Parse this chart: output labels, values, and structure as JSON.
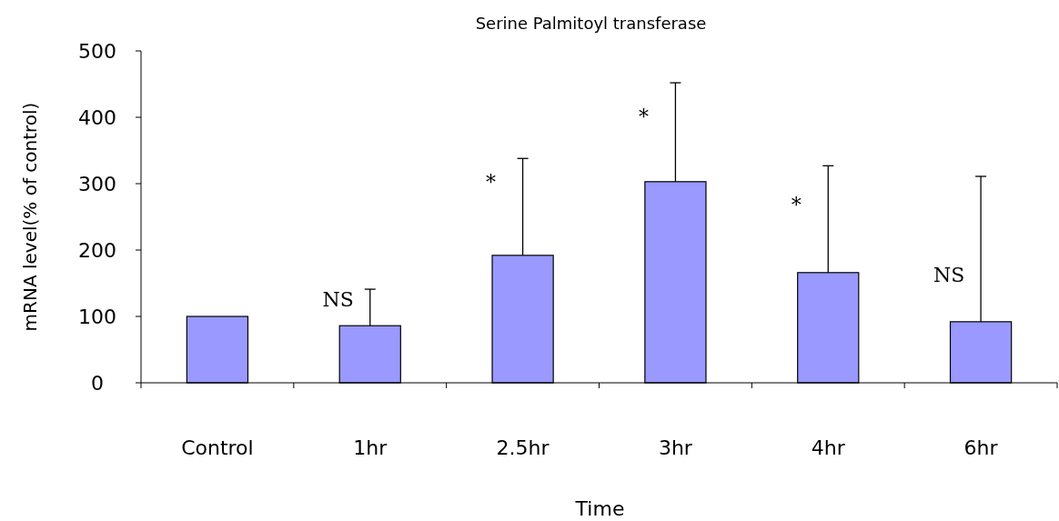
{
  "chart_data": {
    "type": "bar",
    "title": "Serine Palmitoyl transferase",
    "xlabel": "Time",
    "ylabel": "mRNA level(% of control)",
    "categories": [
      "Control",
      "1hr",
      "2.5hr",
      "3hr",
      "4hr",
      "6hr"
    ],
    "values": [
      100,
      86,
      192,
      303,
      166,
      92
    ],
    "errors": [
      null,
      [
        86,
        141
      ],
      [
        192,
        338
      ],
      [
        303,
        452
      ],
      [
        166,
        327
      ],
      [
        92,
        311
      ]
    ],
    "color": "#9999ff",
    "ylim": [
      0,
      500
    ],
    "yticks": [
      0,
      100,
      200,
      300,
      400,
      500
    ],
    "grid": false,
    "annotations": [
      {
        "text": "NS",
        "x": "1hr",
        "y": 125
      },
      {
        "text": "*",
        "x": "2.5hr",
        "y": 303
      },
      {
        "text": "*",
        "x": "3hr",
        "y": 401
      },
      {
        "text": "*",
        "x": "4hr",
        "y": 268
      },
      {
        "text": "NS",
        "x": "6hr",
        "y": 163
      }
    ]
  }
}
